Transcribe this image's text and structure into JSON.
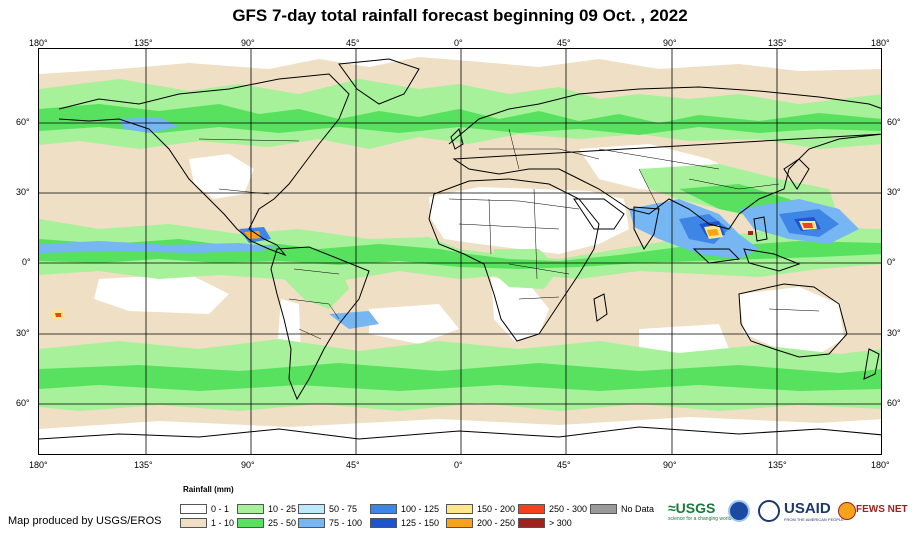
{
  "title": "GFS 7-day total rainfall forecast beginning 09 Oct. , 2022",
  "lon_ticks": [
    "180°",
    "135°",
    "90°",
    "45°",
    "0°",
    "45°",
    "90°",
    "135°",
    "180°"
  ],
  "lat_ticks": [
    "60°",
    "30°",
    "0°",
    "30°",
    "60°"
  ],
  "legend": {
    "title": "Rainfall (mm)",
    "items": [
      {
        "label": "0 - 1",
        "color": "#ffffff"
      },
      {
        "label": "1 - 10",
        "color": "#efdfc5"
      },
      {
        "label": "10 - 25",
        "color": "#a6f19a"
      },
      {
        "label": "25 - 50",
        "color": "#58e15f"
      },
      {
        "label": "50 - 75",
        "color": "#bde9fb"
      },
      {
        "label": "75 - 100",
        "color": "#75b6f3"
      },
      {
        "label": "100 - 125",
        "color": "#3e86e6"
      },
      {
        "label": "125 - 150",
        "color": "#1d54cf"
      },
      {
        "label": "150 - 200",
        "color": "#fde68b"
      },
      {
        "label": "200 - 250",
        "color": "#fba21c"
      },
      {
        "label": "250 - 300",
        "color": "#f5411e"
      },
      {
        "label": "> 300",
        "color": "#a0211d"
      },
      {
        "label": "No Data",
        "color": "#9b9b9b"
      }
    ]
  },
  "credit": "Map produced by USGS/EROS",
  "logos": {
    "usgs": "≈USGS",
    "usgs_tag": "science for a changing world",
    "usaid": "USAID",
    "usaid_tag": "FROM THE AMERICAN PEOPLE",
    "fews": "FEWS NET"
  }
}
